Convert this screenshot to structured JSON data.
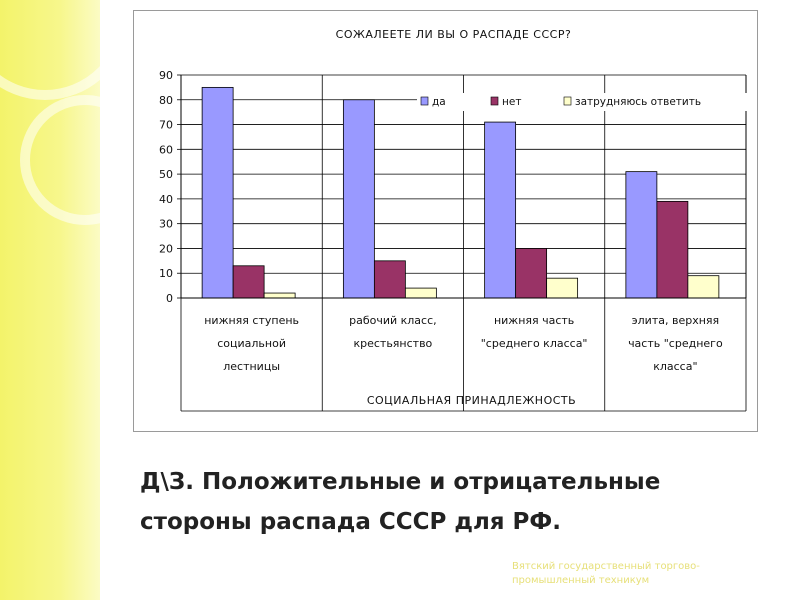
{
  "slide": {
    "title_line1": "Д\\З. Положительные и отрицательные",
    "title_line2": "стороны распада СССР для РФ.",
    "footer_line1": "Вятский государственный торгово-",
    "footer_line2": "промышленный техникум"
  },
  "chart_data": {
    "type": "bar",
    "title": "СОЖАЛЕЕТЕ ЛИ ВЫ О РАСПАДЕ СССР?",
    "xlabel": "СОЦИАЛЬНАЯ ПРИНАДЛЕЖНОСТЬ",
    "ylabel": "",
    "ylim": [
      0,
      90
    ],
    "yticks": [
      0,
      10,
      20,
      30,
      40,
      50,
      60,
      70,
      80,
      90
    ],
    "grid": true,
    "legend_position": "top-right",
    "categories": [
      [
        "нижняя ступень",
        "социальной",
        "лестницы"
      ],
      [
        "рабочий класс,",
        "крестьянство"
      ],
      [
        "нижняя часть",
        "\"среднего класса\""
      ],
      [
        "элита, верхняя",
        "часть \"среднего",
        "класса\""
      ]
    ],
    "series": [
      {
        "name": "да",
        "color": "#9999ff",
        "values": [
          85,
          80,
          71,
          51
        ]
      },
      {
        "name": "нет",
        "color": "#993366",
        "values": [
          13,
          15,
          20,
          39
        ]
      },
      {
        "name": "затрудняюсь ответить",
        "color": "#ffffcc",
        "values": [
          2,
          4,
          8,
          9
        ]
      }
    ]
  }
}
